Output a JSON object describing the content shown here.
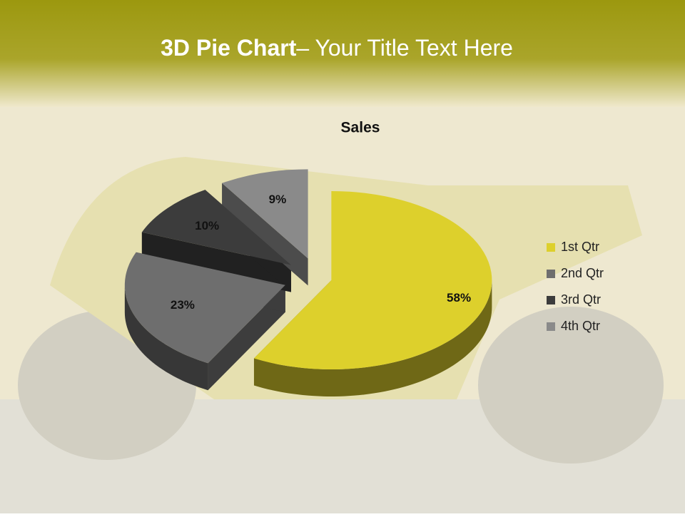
{
  "slide": {
    "title_bold": "3D Pie Chart",
    "title_rest": "– Your Title Text Here"
  },
  "chart_data": {
    "type": "pie",
    "title": "Sales",
    "categories": [
      "1st Qtr",
      "2nd Qtr",
      "3rd Qtr",
      "4th Qtr"
    ],
    "values": [
      58,
      23,
      10,
      9
    ],
    "value_labels": [
      "58%",
      "23%",
      "10%",
      "9%"
    ],
    "colors": [
      "#ddd02c",
      "#6e6e6e",
      "#3c3c3c",
      "#8a8a8a"
    ],
    "legend": "right"
  }
}
